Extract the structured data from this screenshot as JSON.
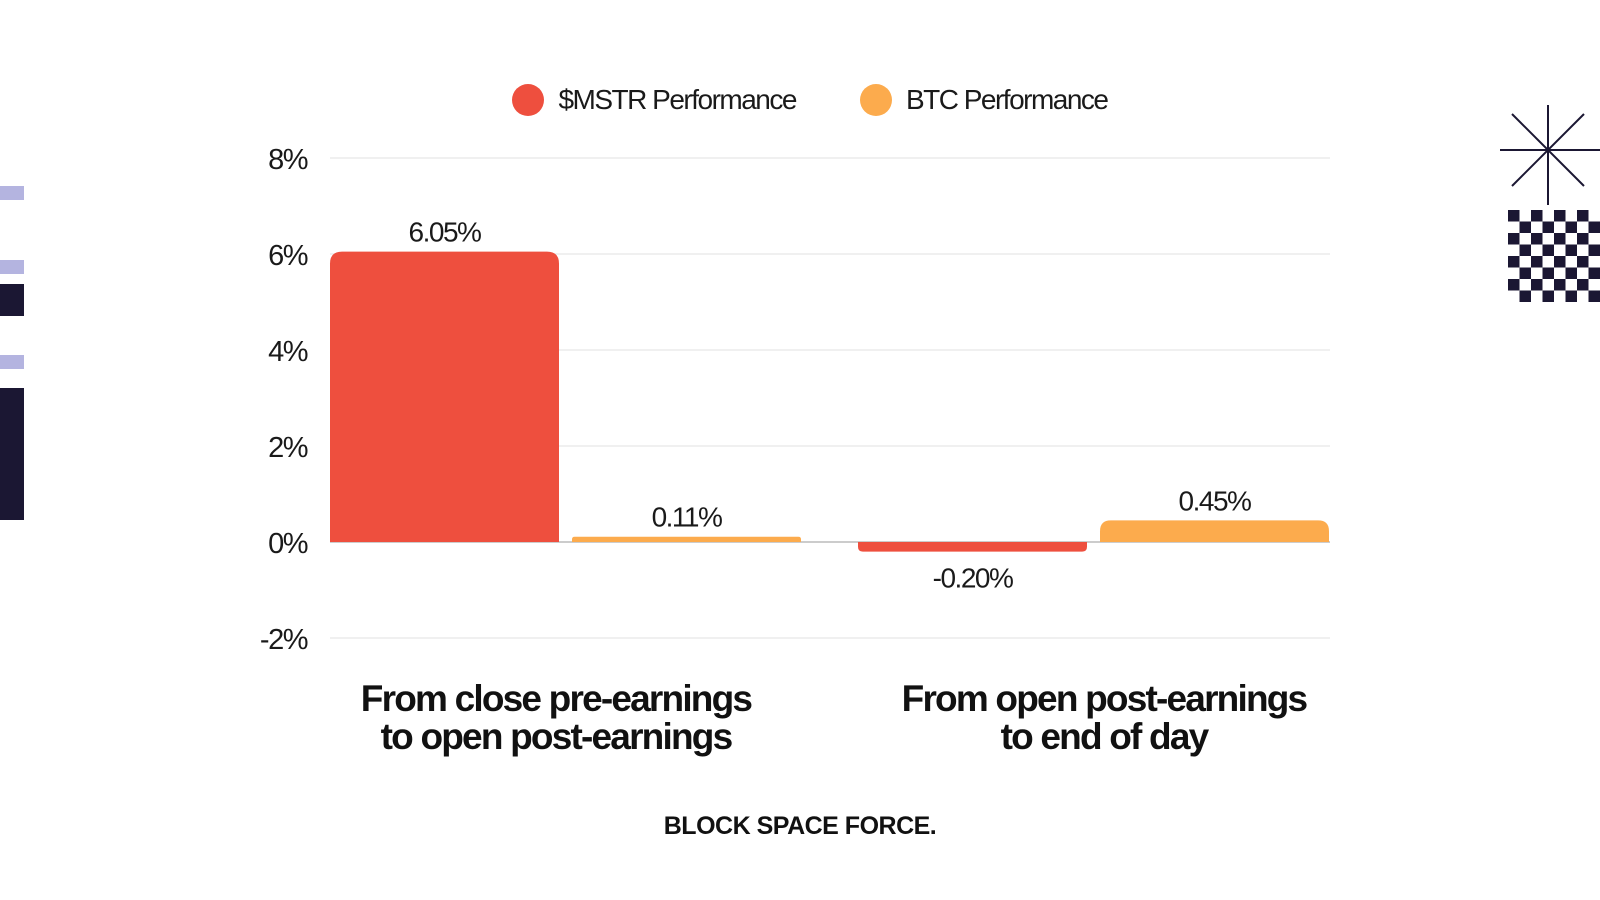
{
  "legend": [
    {
      "name": "$MSTR Performance",
      "color": "#ee4f3e"
    },
    {
      "name": "BTC Performance",
      "color": "#fcab4d"
    }
  ],
  "chart_data": {
    "type": "bar",
    "categories": [
      "From close pre-earnings to open post-earnings",
      "From open post-earnings to end of day"
    ],
    "category_lines": [
      [
        "From close pre-earnings",
        "to open post-earnings"
      ],
      [
        "From open post-earnings",
        "to end of day"
      ]
    ],
    "series": [
      {
        "name": "$MSTR Performance",
        "values": [
          6.05,
          -0.2
        ],
        "labels": [
          "6.05%",
          "-0.20%"
        ],
        "color": "#ee4f3e"
      },
      {
        "name": "BTC Performance",
        "values": [
          0.11,
          0.45
        ],
        "labels": [
          "0.11%",
          "0.45%"
        ],
        "color": "#fcab4d"
      }
    ],
    "yticks": [
      8,
      6,
      4,
      2,
      0,
      -2
    ],
    "ytick_labels": [
      "8%",
      "6%",
      "4%",
      "2%",
      "0%",
      "-2%"
    ],
    "ylim": [
      -2,
      8
    ],
    "grid": true,
    "legend_position": "top-center"
  },
  "brand": {
    "text": "BLOCK SPACE FORCE."
  },
  "colors": {
    "navy": "#1b1733",
    "lavender": "#b4b4e0",
    "grid": "#e2e2e2"
  }
}
